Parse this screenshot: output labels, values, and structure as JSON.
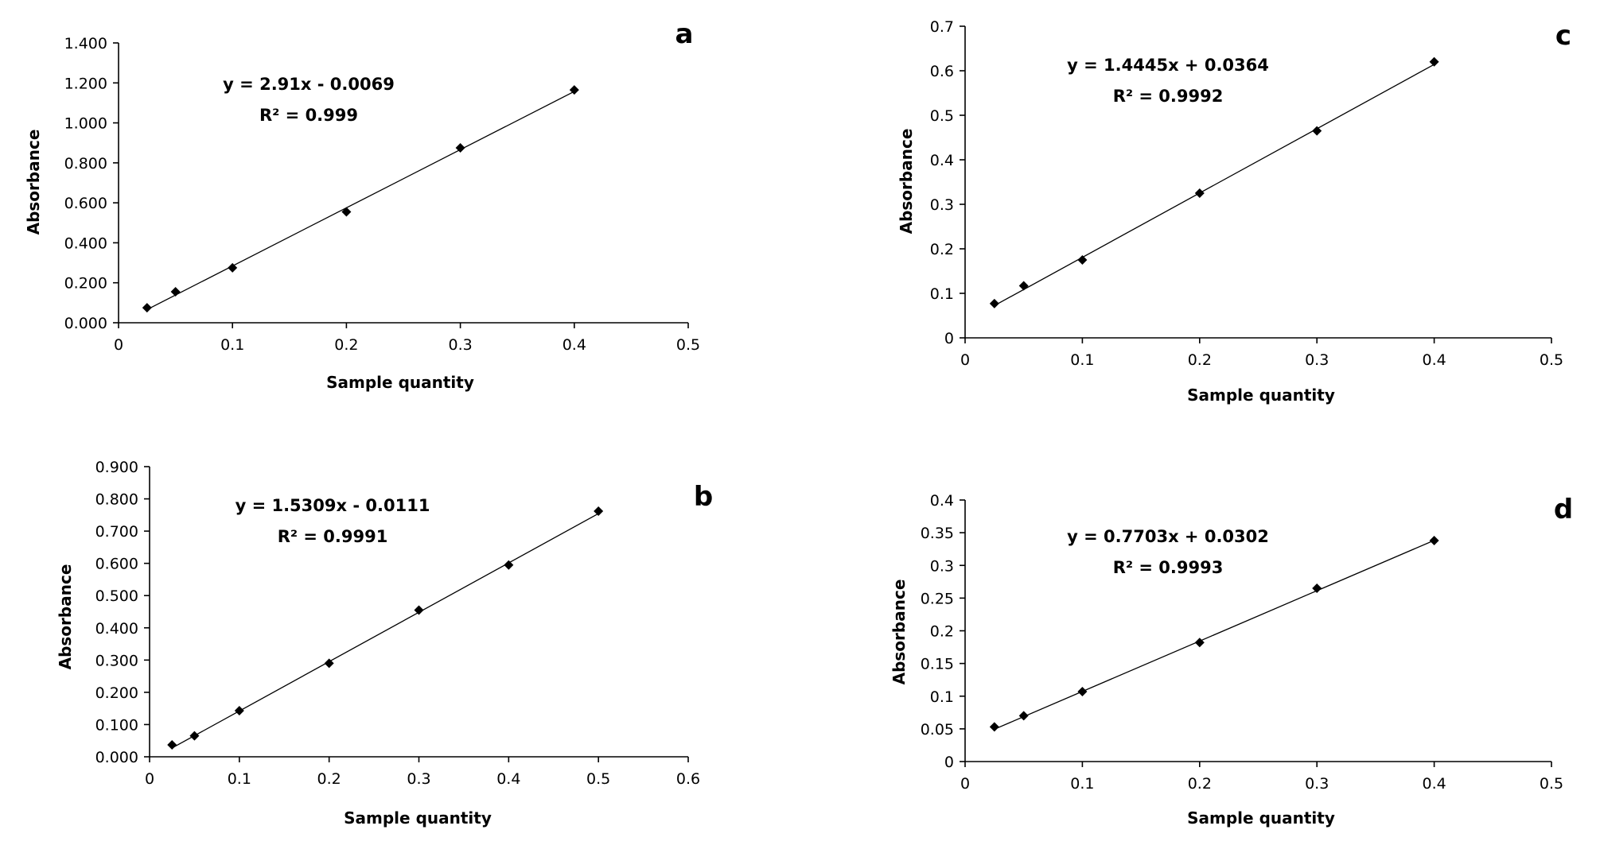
{
  "chart_data": [
    {
      "type": "scatter",
      "panel_label": "a",
      "xlabel": "Sample quantity",
      "ylabel": "Absorbance",
      "xlim": [
        0,
        0.5
      ],
      "ylim": [
        0,
        1.4
      ],
      "x_ticks": [
        "0",
        "0.1",
        "0.2",
        "0.3",
        "0.4",
        "0.5"
      ],
      "y_ticks": [
        "0.000",
        "0.200",
        "0.400",
        "0.600",
        "0.800",
        "1.000",
        "1.200",
        "1.400"
      ],
      "x": [
        0.025,
        0.05,
        0.1,
        0.2,
        0.3,
        0.4
      ],
      "y": [
        0.075,
        0.155,
        0.275,
        0.555,
        0.875,
        1.165
      ],
      "trendline": {
        "slope": 2.91,
        "intercept": -0.0069
      },
      "equation": "y = 2.91x - 0.0069",
      "r_squared": "R² = 0.999",
      "grid": false,
      "legend": "none"
    },
    {
      "type": "scatter",
      "panel_label": "b",
      "xlabel": "Sample quantity",
      "ylabel": "Absorbance",
      "xlim": [
        0,
        0.6
      ],
      "ylim": [
        0,
        0.9
      ],
      "x_ticks": [
        "0",
        "0.1",
        "0.2",
        "0.3",
        "0.4",
        "0.5",
        "0.6"
      ],
      "y_ticks": [
        "0.000",
        "0.100",
        "0.200",
        "0.300",
        "0.400",
        "0.500",
        "0.600",
        "0.700",
        "0.800",
        "0.900"
      ],
      "x": [
        0.025,
        0.05,
        0.1,
        0.2,
        0.3,
        0.4,
        0.5
      ],
      "y": [
        0.037,
        0.065,
        0.143,
        0.29,
        0.455,
        0.595,
        0.762
      ],
      "trendline": {
        "slope": 1.5309,
        "intercept": -0.0111
      },
      "equation": "y = 1.5309x - 0.0111",
      "r_squared": "R² = 0.9991",
      "grid": false,
      "legend": "none"
    },
    {
      "type": "scatter",
      "panel_label": "c",
      "xlabel": "Sample quantity",
      "ylabel": "Absorbance",
      "xlim": [
        0,
        0.5
      ],
      "ylim": [
        0,
        0.7
      ],
      "x_ticks": [
        "0",
        "0.1",
        "0.2",
        "0.3",
        "0.4",
        "0.5"
      ],
      "y_ticks": [
        "0",
        "0.1",
        "0.2",
        "0.3",
        "0.4",
        "0.5",
        "0.6",
        "0.7"
      ],
      "x": [
        0.025,
        0.05,
        0.1,
        0.2,
        0.3,
        0.4
      ],
      "y": [
        0.077,
        0.117,
        0.175,
        0.325,
        0.465,
        0.62
      ],
      "trendline": {
        "slope": 1.4445,
        "intercept": 0.0364
      },
      "equation": "y = 1.4445x + 0.0364",
      "r_squared": "R² = 0.9992",
      "grid": false,
      "legend": "none"
    },
    {
      "type": "scatter",
      "panel_label": "d",
      "xlabel": "Sample quantity",
      "ylabel": "Absorbance",
      "xlim": [
        0,
        0.5
      ],
      "ylim": [
        0,
        0.4
      ],
      "x_ticks": [
        "0",
        "0.1",
        "0.2",
        "0.3",
        "0.4",
        "0.5"
      ],
      "y_ticks": [
        "0",
        "0.05",
        "0.1",
        "0.15",
        "0.2",
        "0.25",
        "0.3",
        "0.35",
        "0.4"
      ],
      "x": [
        0.025,
        0.05,
        0.1,
        0.2,
        0.3,
        0.4
      ],
      "y": [
        0.053,
        0.07,
        0.107,
        0.182,
        0.265,
        0.338
      ],
      "trendline": {
        "slope": 0.7703,
        "intercept": 0.0302
      },
      "equation": "y = 0.7703x + 0.0302",
      "r_squared": "R² = 0.9993",
      "grid": false,
      "legend": "none"
    }
  ]
}
